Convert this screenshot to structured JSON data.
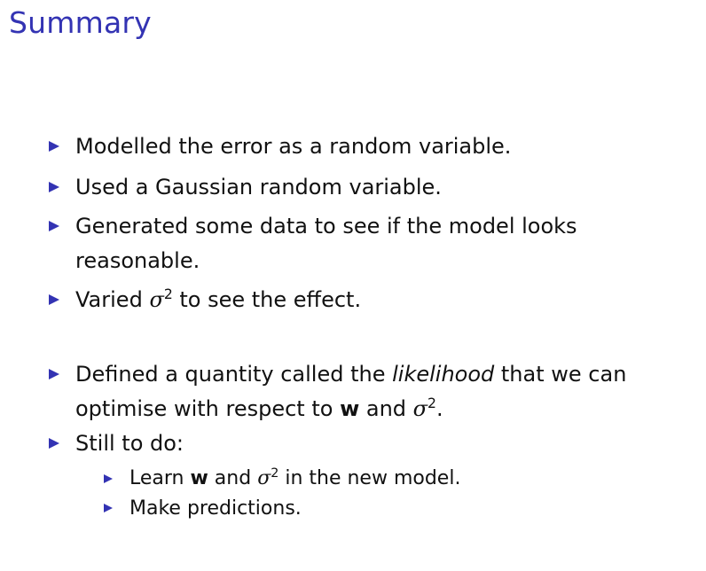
{
  "slide": {
    "title": "Summary"
  },
  "bullets": [
    {
      "text": "Modelled the error as a random variable."
    },
    {
      "text": "Used a Gaussian random variable."
    },
    {
      "line1": "Generated some data to see if the model looks",
      "line2": "reasonable."
    },
    {
      "pre": "Varied ",
      "sigma": "σ",
      "exp": "2",
      "post": " to see the effect."
    },
    {
      "pre": "Defined a quantity called the ",
      "italic": "likelihood",
      "post": " that we can",
      "l2pre": "optimise with respect to ",
      "w": "w",
      "l2mid": " and ",
      "sigma": "σ",
      "exp": "2",
      "l2post": "."
    },
    {
      "text": "Still to do:"
    }
  ],
  "subbullets": [
    {
      "pre": "Learn ",
      "w": "w",
      "mid": " and ",
      "sigma": "σ",
      "exp": "2",
      "post": " in the new model."
    },
    {
      "text": "Make predictions."
    }
  ],
  "colors": {
    "title": "#3333b3",
    "bullet": "#3333b3",
    "text": "#111111"
  }
}
